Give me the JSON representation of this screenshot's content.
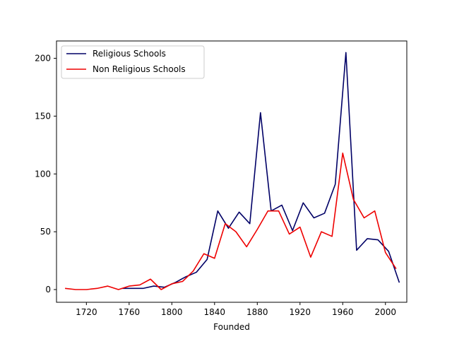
{
  "chart_data": {
    "type": "line",
    "xlabel": "Founded",
    "ylabel": "",
    "xlim": [
      1692,
      2020
    ],
    "ylim": [
      -11,
      215
    ],
    "xticks": [
      1720,
      1760,
      1800,
      1840,
      1880,
      1920,
      1960,
      2000
    ],
    "yticks": [
      0,
      50,
      100,
      150,
      200
    ],
    "grid": false,
    "legend_position": "top-left",
    "series": [
      {
        "name": "Religious Schools",
        "color": "#000066",
        "x": [
          1753,
          1763,
          1773,
          1783,
          1793,
          1803,
          1813,
          1823,
          1833,
          1843,
          1853,
          1863,
          1873,
          1883,
          1893,
          1903,
          1913,
          1923,
          1933,
          1943,
          1953,
          1963,
          1973,
          1983,
          1993,
          2003,
          2013
        ],
        "y": [
          1,
          1,
          1,
          3,
          2,
          6,
          11,
          15,
          26,
          68,
          53,
          67,
          57,
          153,
          68,
          73,
          51,
          75,
          62,
          66,
          91,
          205,
          34,
          44,
          43,
          33,
          6
        ]
      },
      {
        "name": "Non Religious Schools",
        "color": "#ee0000",
        "x": [
          1700,
          1710,
          1720,
          1730,
          1740,
          1750,
          1760,
          1770,
          1780,
          1790,
          1800,
          1810,
          1820,
          1830,
          1840,
          1850,
          1860,
          1870,
          1880,
          1890,
          1900,
          1910,
          1920,
          1930,
          1940,
          1950,
          1960,
          1970,
          1980,
          1990,
          2000,
          2010
        ],
        "y": [
          1,
          0,
          0,
          1,
          3,
          0,
          3,
          4,
          9,
          0,
          5,
          7,
          16,
          31,
          27,
          57,
          50,
          37,
          52,
          68,
          68,
          48,
          54,
          28,
          50,
          46,
          118,
          78,
          62,
          68,
          32,
          18
        ]
      }
    ]
  }
}
